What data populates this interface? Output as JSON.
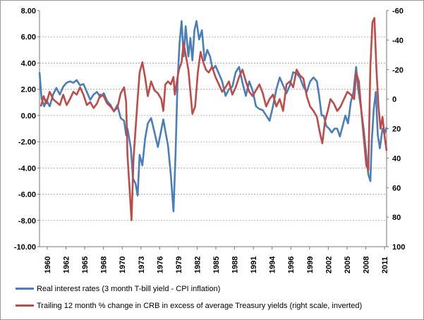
{
  "chart_data": {
    "type": "line",
    "title": "",
    "xlabel": "",
    "ylabel_left": "",
    "ylabel_right": "",
    "x_tick_labels": [
      "1960",
      "1962",
      "1965",
      "1968",
      "1970",
      "1973",
      "1976",
      "1979",
      "1982",
      "1985",
      "1988",
      "1991",
      "1994",
      "1996",
      "1999",
      "2002",
      "2005",
      "2008",
      "2011"
    ],
    "x_range": [
      1960,
      2011.3
    ],
    "left_axis": {
      "ticks": [
        "8.00",
        "6.00",
        "4.00",
        "2.00",
        "0.00",
        "-2.00",
        "-4.00",
        "-6.00",
        "-8.00",
        "-10.00"
      ],
      "ylim": [
        -10,
        8
      ]
    },
    "right_axis": {
      "ticks": [
        "-60",
        "-40",
        "-20",
        "0",
        "20",
        "40",
        "60",
        "80",
        "100"
      ],
      "ylim": [
        -60,
        100
      ],
      "inverted": true
    },
    "grid": "horizontal dashed",
    "legend_position": "bottom",
    "series": [
      {
        "name": "Real interest rates (3 month T-bill yield - CPI inflation)",
        "color": "#4a7ebb",
        "axis": "left",
        "points": [
          [
            1960.0,
            3.3
          ],
          [
            1960.3,
            1.3
          ],
          [
            1960.7,
            0.7
          ],
          [
            1961.0,
            1.2
          ],
          [
            1961.5,
            0.7
          ],
          [
            1962.0,
            1.6
          ],
          [
            1962.5,
            2.1
          ],
          [
            1963.0,
            1.6
          ],
          [
            1963.5,
            2.2
          ],
          [
            1964.0,
            2.5
          ],
          [
            1964.5,
            2.6
          ],
          [
            1965.0,
            2.5
          ],
          [
            1965.5,
            2.7
          ],
          [
            1966.0,
            2.3
          ],
          [
            1966.5,
            2.4
          ],
          [
            1967.0,
            1.8
          ],
          [
            1967.5,
            1.2
          ],
          [
            1968.0,
            1.6
          ],
          [
            1968.5,
            1.8
          ],
          [
            1969.0,
            1.4
          ],
          [
            1969.5,
            1.7
          ],
          [
            1970.0,
            1.1
          ],
          [
            1970.5,
            0.8
          ],
          [
            1971.0,
            0.3
          ],
          [
            1971.5,
            0.8
          ],
          [
            1972.0,
            -0.2
          ],
          [
            1972.5,
            -0.4
          ],
          [
            1972.8,
            -1.5
          ],
          [
            1973.0,
            -1.0
          ],
          [
            1973.5,
            -2.5
          ],
          [
            1973.8,
            -4.8
          ],
          [
            1974.2,
            -5.2
          ],
          [
            1974.5,
            -6.1
          ],
          [
            1974.8,
            -3.0
          ],
          [
            1975.2,
            -3.8
          ],
          [
            1975.6,
            -1.8
          ],
          [
            1976.0,
            -0.6
          ],
          [
            1976.5,
            -0.2
          ],
          [
            1977.0,
            -1.3
          ],
          [
            1977.5,
            -2.4
          ],
          [
            1978.0,
            -1.1
          ],
          [
            1978.3,
            -0.3
          ],
          [
            1978.6,
            -1.2
          ],
          [
            1979.0,
            -2.3
          ],
          [
            1979.4,
            -4.5
          ],
          [
            1979.8,
            -7.3
          ],
          [
            1980.1,
            -3.0
          ],
          [
            1980.4,
            2.5
          ],
          [
            1980.7,
            5.5
          ],
          [
            1981.0,
            7.2
          ],
          [
            1981.3,
            4.5
          ],
          [
            1981.6,
            6.8
          ],
          [
            1982.0,
            4.5
          ],
          [
            1982.3,
            5.9
          ],
          [
            1982.6,
            4.2
          ],
          [
            1982.9,
            6.5
          ],
          [
            1983.2,
            7.2
          ],
          [
            1983.6,
            5.8
          ],
          [
            1984.0,
            6.5
          ],
          [
            1984.4,
            4.2
          ],
          [
            1984.8,
            5.0
          ],
          [
            1985.2,
            4.5
          ],
          [
            1985.6,
            3.5
          ],
          [
            1986.0,
            3.8
          ],
          [
            1986.5,
            3.2
          ],
          [
            1987.0,
            2.6
          ],
          [
            1987.5,
            1.5
          ],
          [
            1988.0,
            2.0
          ],
          [
            1988.5,
            2.2
          ],
          [
            1989.0,
            3.3
          ],
          [
            1989.5,
            3.7
          ],
          [
            1990.0,
            2.5
          ],
          [
            1990.5,
            1.5
          ],
          [
            1991.0,
            2.6
          ],
          [
            1991.5,
            1.9
          ],
          [
            1992.0,
            0.7
          ],
          [
            1992.5,
            0.5
          ],
          [
            1993.0,
            0.4
          ],
          [
            1993.5,
            0.0
          ],
          [
            1994.0,
            -0.4
          ],
          [
            1994.5,
            0.7
          ],
          [
            1995.0,
            2.0
          ],
          [
            1995.5,
            2.9
          ],
          [
            1996.0,
            2.3
          ],
          [
            1996.5,
            1.7
          ],
          [
            1997.0,
            2.3
          ],
          [
            1997.5,
            3.3
          ],
          [
            1998.0,
            3.2
          ],
          [
            1998.5,
            2.9
          ],
          [
            1999.0,
            2.2
          ],
          [
            1999.5,
            1.8
          ],
          [
            2000.0,
            2.6
          ],
          [
            2000.5,
            2.9
          ],
          [
            2001.0,
            2.6
          ],
          [
            2001.3,
            1.6
          ],
          [
            2001.7,
            0.0
          ],
          [
            2002.0,
            0.0
          ],
          [
            2002.4,
            -0.8
          ],
          [
            2002.8,
            -1.0
          ],
          [
            2003.2,
            -1.3
          ],
          [
            2003.6,
            -1.0
          ],
          [
            2004.0,
            -1.0
          ],
          [
            2004.4,
            -1.6
          ],
          [
            2004.8,
            -0.8
          ],
          [
            2005.2,
            0.0
          ],
          [
            2005.6,
            -0.6
          ],
          [
            2006.0,
            1.0
          ],
          [
            2006.4,
            1.8
          ],
          [
            2006.8,
            3.7
          ],
          [
            2007.1,
            2.0
          ],
          [
            2007.5,
            0.6
          ],
          [
            2007.9,
            -1.0
          ],
          [
            2008.3,
            -3.0
          ],
          [
            2008.6,
            -4.5
          ],
          [
            2008.9,
            -5.0
          ],
          [
            2009.1,
            -2.0
          ],
          [
            2009.4,
            0.5
          ],
          [
            2009.7,
            1.8
          ],
          [
            2010.0,
            -1.5
          ],
          [
            2010.3,
            -2.5
          ],
          [
            2010.7,
            -1.0
          ],
          [
            2011.0,
            -1.4
          ],
          [
            2011.3,
            -0.9
          ]
        ]
      },
      {
        "name": "Trailing 12 month % change in CRB in excess of average Treasury yields (right scale, inverted)",
        "color": "#be4b48",
        "axis": "right",
        "points": [
          [
            1960.2,
            5
          ],
          [
            1960.6,
            -2
          ],
          [
            1961.0,
            3
          ],
          [
            1961.5,
            -5
          ],
          [
            1962.0,
            0
          ],
          [
            1962.5,
            2
          ],
          [
            1963.0,
            4
          ],
          [
            1963.5,
            -3
          ],
          [
            1964.0,
            4
          ],
          [
            1964.5,
            0
          ],
          [
            1965.0,
            -5
          ],
          [
            1965.5,
            -3
          ],
          [
            1966.0,
            -8
          ],
          [
            1966.5,
            -3
          ],
          [
            1967.0,
            4
          ],
          [
            1967.5,
            2
          ],
          [
            1968.0,
            6
          ],
          [
            1968.5,
            3
          ],
          [
            1969.0,
            -3
          ],
          [
            1969.5,
            -2
          ],
          [
            1970.0,
            3
          ],
          [
            1970.5,
            5
          ],
          [
            1971.0,
            8
          ],
          [
            1971.5,
            6
          ],
          [
            1972.0,
            -4
          ],
          [
            1972.5,
            -8
          ],
          [
            1972.8,
            2
          ],
          [
            1973.0,
            38
          ],
          [
            1973.3,
            60
          ],
          [
            1973.6,
            82
          ],
          [
            1973.9,
            40
          ],
          [
            1974.2,
            20
          ],
          [
            1974.5,
            0
          ],
          [
            1974.8,
            -18
          ],
          [
            1975.2,
            -25
          ],
          [
            1975.6,
            -15
          ],
          [
            1976.0,
            -2
          ],
          [
            1976.5,
            -12
          ],
          [
            1977.0,
            -6
          ],
          [
            1977.5,
            -4
          ],
          [
            1978.0,
            0
          ],
          [
            1978.3,
            8
          ],
          [
            1978.6,
            -10
          ],
          [
            1979.0,
            -12
          ],
          [
            1979.4,
            -10
          ],
          [
            1979.8,
            -15
          ],
          [
            1980.0,
            -3
          ],
          [
            1980.3,
            -12
          ],
          [
            1980.6,
            -20
          ],
          [
            1981.0,
            -25
          ],
          [
            1981.3,
            -38
          ],
          [
            1981.6,
            -30
          ],
          [
            1982.0,
            -20
          ],
          [
            1982.3,
            -5
          ],
          [
            1982.6,
            10
          ],
          [
            1983.0,
            5
          ],
          [
            1983.4,
            -18
          ],
          [
            1983.8,
            -32
          ],
          [
            1984.2,
            -25
          ],
          [
            1984.6,
            -20
          ],
          [
            1985.0,
            -18
          ],
          [
            1985.5,
            -22
          ],
          [
            1986.0,
            -15
          ],
          [
            1986.5,
            -10
          ],
          [
            1987.0,
            -5
          ],
          [
            1987.5,
            -8
          ],
          [
            1988.0,
            -12
          ],
          [
            1988.5,
            -3
          ],
          [
            1989.0,
            -8
          ],
          [
            1989.5,
            -15
          ],
          [
            1990.0,
            -20
          ],
          [
            1990.5,
            -12
          ],
          [
            1991.0,
            -5
          ],
          [
            1991.5,
            -2
          ],
          [
            1992.0,
            -6
          ],
          [
            1992.5,
            -10
          ],
          [
            1993.0,
            -4
          ],
          [
            1993.5,
            5
          ],
          [
            1994.0,
            0
          ],
          [
            1994.5,
            -3
          ],
          [
            1995.0,
            5
          ],
          [
            1995.5,
            0
          ],
          [
            1996.0,
            8
          ],
          [
            1996.5,
            -10
          ],
          [
            1997.0,
            -12
          ],
          [
            1997.5,
            -8
          ],
          [
            1998.0,
            -20
          ],
          [
            1998.5,
            -16
          ],
          [
            1999.0,
            -14
          ],
          [
            1999.5,
            -2
          ],
          [
            2000.0,
            5
          ],
          [
            2000.5,
            8
          ],
          [
            2001.0,
            12
          ],
          [
            2001.4,
            22
          ],
          [
            2001.8,
            30
          ],
          [
            2002.2,
            15
          ],
          [
            2002.6,
            8
          ],
          [
            2003.0,
            0
          ],
          [
            2003.5,
            3
          ],
          [
            2004.0,
            8
          ],
          [
            2004.5,
            5
          ],
          [
            2005.0,
            0
          ],
          [
            2005.5,
            -5
          ],
          [
            2006.0,
            -3
          ],
          [
            2006.5,
            0
          ],
          [
            2006.8,
            -18
          ],
          [
            2007.2,
            -12
          ],
          [
            2007.6,
            10
          ],
          [
            2008.0,
            30
          ],
          [
            2008.3,
            45
          ],
          [
            2008.6,
            48
          ],
          [
            2008.9,
            -22
          ],
          [
            2009.2,
            -52
          ],
          [
            2009.5,
            -55
          ],
          [
            2009.8,
            -20
          ],
          [
            2010.1,
            5
          ],
          [
            2010.4,
            20
          ],
          [
            2010.7,
            12
          ],
          [
            2011.0,
            25
          ],
          [
            2011.3,
            35
          ]
        ]
      }
    ]
  },
  "legend": {
    "blue_label": "Real interest rates (3 month T-bill yield - CPI inflation)",
    "red_label": "Trailing 12 month % change in CRB in excess of average Treasury yields (right scale, inverted)"
  }
}
